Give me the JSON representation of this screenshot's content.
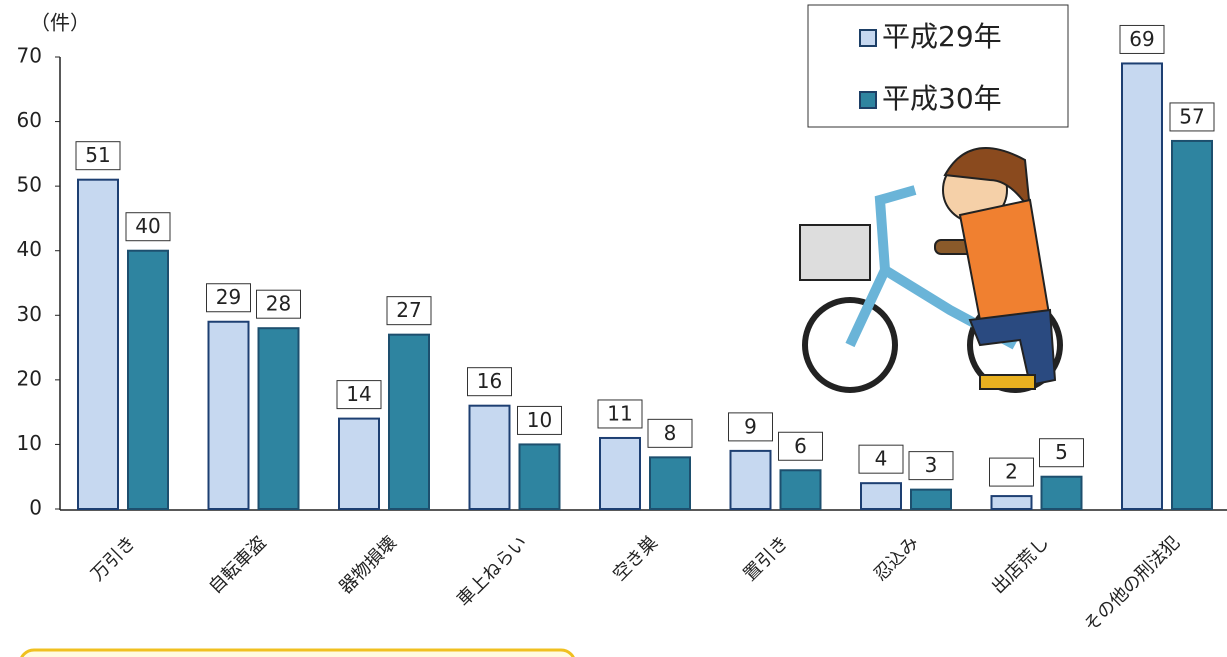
{
  "chart_data": {
    "type": "bar",
    "y_label": "（件）",
    "categories": [
      "万引き",
      "自転車盗",
      "器物損壊",
      "車上ねらい",
      "空き巣",
      "置引き",
      "忍込み",
      "出店荒し",
      "その他の刑法犯"
    ],
    "series": [
      {
        "name": "平成29年",
        "color": "#c6d8f0",
        "values": [
          51,
          29,
          14,
          16,
          11,
          9,
          4,
          2,
          69
        ]
      },
      {
        "name": "平成30年",
        "color": "#2e84a0",
        "values": [
          40,
          28,
          27,
          10,
          8,
          6,
          3,
          5,
          57
        ]
      }
    ],
    "ylim": [
      0,
      70
    ],
    "yticks": [
      0,
      10,
      20,
      30,
      40,
      50,
      60,
      70
    ],
    "grid": false,
    "legend": "upper-right"
  }
}
